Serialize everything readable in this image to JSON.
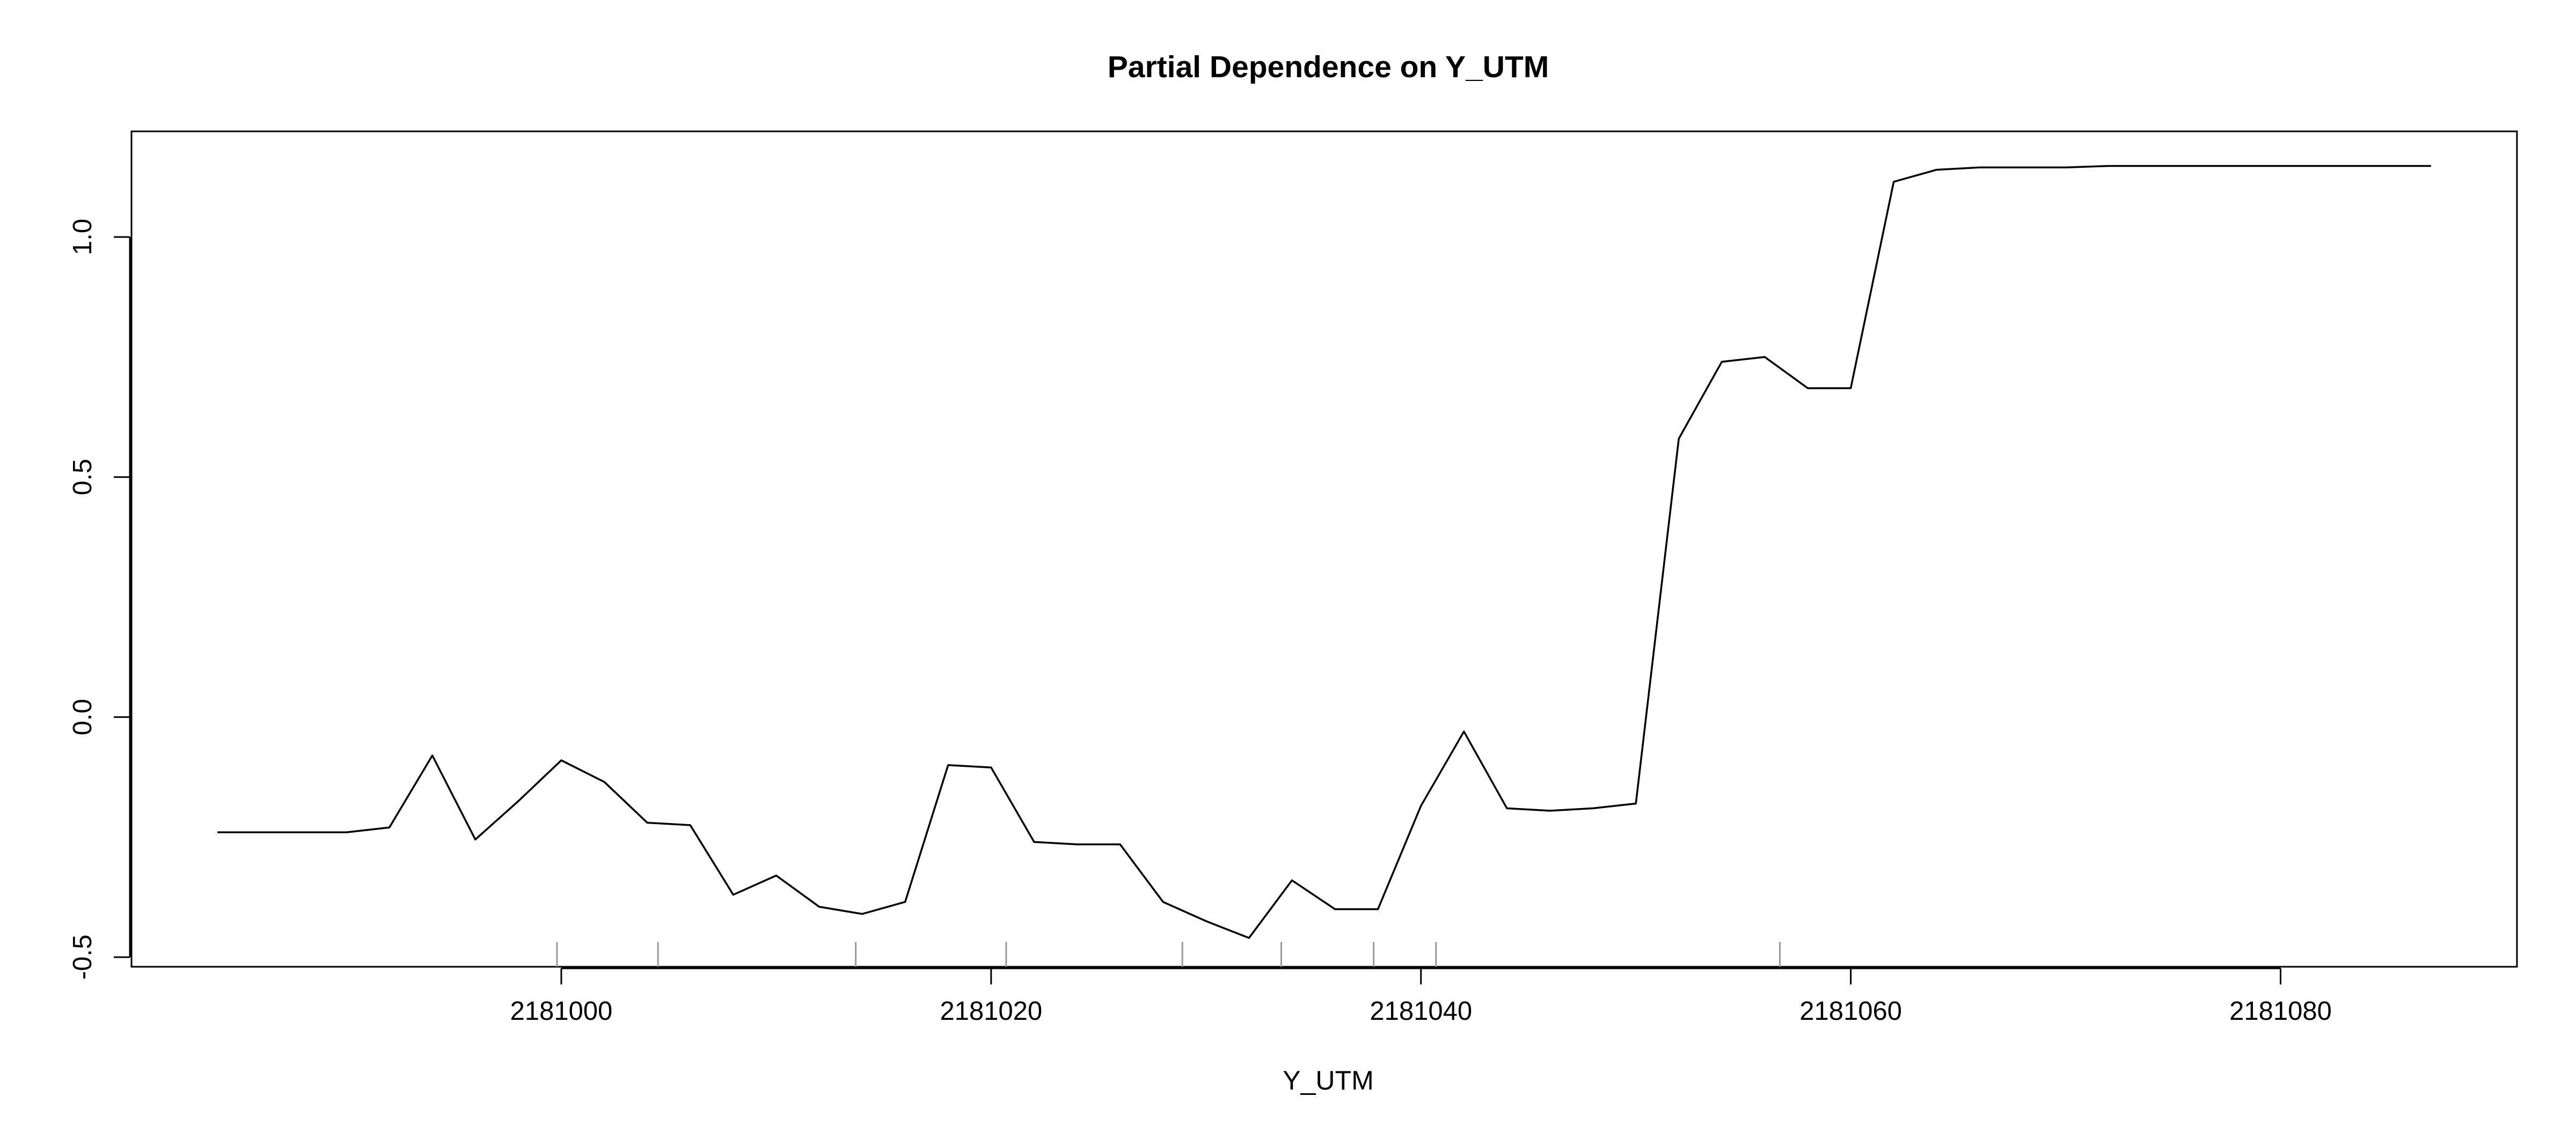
{
  "chart_data": {
    "type": "line",
    "title": "Partial Dependence on Y_UTM",
    "xlabel": "Y_UTM",
    "ylabel": "",
    "xlim": [
      2180980,
      2181091
    ],
    "ylim": [
      -0.52,
      1.22
    ],
    "xticks": [
      {
        "value": 2181000,
        "label": "2181000"
      },
      {
        "value": 2181020,
        "label": "2181020"
      },
      {
        "value": 2181040,
        "label": "2181040"
      },
      {
        "value": 2181060,
        "label": "2181060"
      },
      {
        "value": 2181080,
        "label": "2181080"
      }
    ],
    "yticks": [
      {
        "value": -0.5,
        "label": "-0.5"
      },
      {
        "value": 0.0,
        "label": "0.0"
      },
      {
        "value": 0.5,
        "label": "0.5"
      },
      {
        "value": 1.0,
        "label": "1.0"
      }
    ],
    "grid": false,
    "line_color": "#000000",
    "rug_color": "#999999",
    "series": [
      {
        "x": [
          2180984.0,
          2180988.0,
          2180990.0,
          2180992.0,
          2180994.0,
          2180996.0,
          2180998.0,
          2181000.0,
          2181002.0,
          2181004.0,
          2181006.0,
          2181008.0,
          2181010.0,
          2181012.0,
          2181014.0,
          2181016.0,
          2181018.0,
          2181020.0,
          2181022.0,
          2181024.0,
          2181026.0,
          2181028.0,
          2181030.0,
          2181032.0,
          2181034.0,
          2181036.0,
          2181038.0,
          2181040.0,
          2181042.0,
          2181044.0,
          2181046.0,
          2181048.0,
          2181050.0,
          2181052.0,
          2181054.0,
          2181056.0,
          2181058.0,
          2181060.0,
          2181062.0,
          2181064.0,
          2181066.0,
          2181068.0,
          2181070.0,
          2181072.0,
          2181080.0,
          2181087.0
        ],
        "y": [
          -0.24,
          -0.24,
          -0.24,
          -0.23,
          -0.08,
          -0.255,
          -0.175,
          -0.09,
          -0.135,
          -0.22,
          -0.225,
          -0.37,
          -0.33,
          -0.395,
          -0.41,
          -0.385,
          -0.1,
          -0.105,
          -0.26,
          -0.265,
          -0.265,
          -0.385,
          -0.425,
          -0.46,
          -0.34,
          -0.4,
          -0.4,
          -0.185,
          -0.03,
          -0.19,
          -0.195,
          -0.19,
          -0.18,
          0.58,
          0.74,
          0.75,
          0.685,
          0.685,
          1.115,
          1.14,
          1.145,
          1.145,
          1.145,
          1.148,
          1.148,
          1.148
        ]
      }
    ],
    "rug": [
      2180999.8,
      2181004.5,
      2181013.7,
      2181020.7,
      2181028.9,
      2181033.5,
      2181037.8,
      2181040.7,
      2181056.7
    ]
  }
}
